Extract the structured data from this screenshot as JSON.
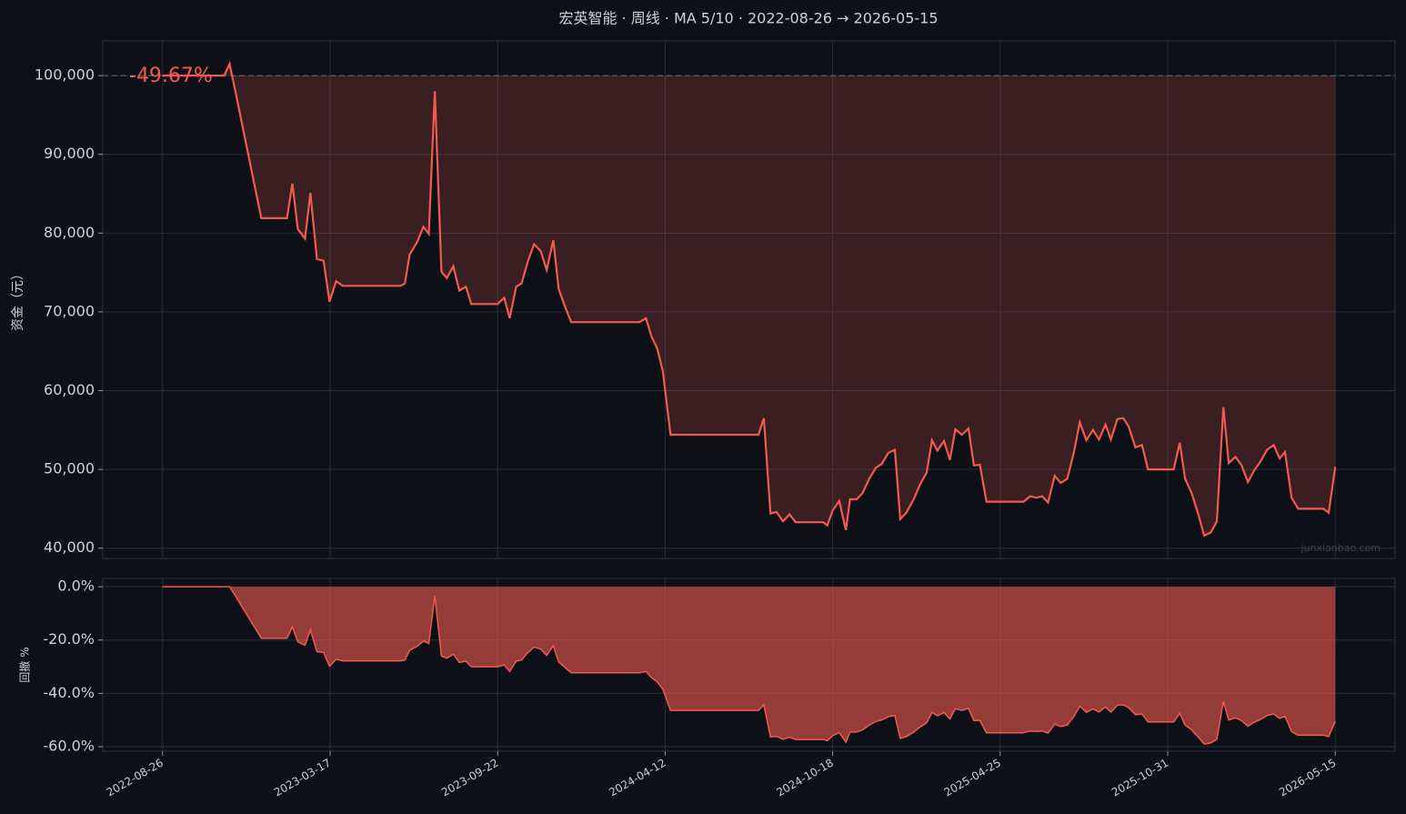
{
  "chart_data": [
    {
      "type": "line",
      "title": "宏英智能 · 周线 · MA 5/10 · 2022-08-26 → 2026-05-15",
      "y_label": "资金（元）",
      "annotation": "-49.67%",
      "watermark": "junxianbao.com",
      "baseline": 100000,
      "xlim": [
        -10,
        206
      ],
      "ylim": [
        38700,
        104400
      ],
      "yticks": [
        {
          "value": 40000,
          "label": "40,000"
        },
        {
          "value": 50000,
          "label": "50,000"
        },
        {
          "value": 60000,
          "label": "60,000"
        },
        {
          "value": 70000,
          "label": "70,000"
        },
        {
          "value": 80000,
          "label": "80,000"
        },
        {
          "value": 90000,
          "label": "90,000"
        },
        {
          "value": 100000,
          "label": "100,000"
        }
      ],
      "grid": true,
      "x": [
        0,
        10.3,
        11.2,
        12.4,
        16.5,
        20.8,
        21.7,
        22.6,
        23.8,
        24.7,
        25.8,
        26.9,
        27.9,
        29.0,
        30.1,
        39.8,
        40.5,
        41.3,
        42.5,
        43.6,
        44.5,
        45.5,
        46.6,
        47.5,
        48.6,
        49.6,
        50.7,
        51.6,
        56.0,
        57.1,
        58.0,
        59.1,
        60.0,
        61.0,
        62.1,
        63.2,
        64.2,
        65.3,
        66.2,
        67.3,
        68.3,
        79.7,
        80.8,
        81.7,
        82.7,
        83.6,
        84.9,
        99.6,
        100.5,
        101.6,
        102.6,
        103.7,
        104.8,
        105.8,
        110.4,
        111.1,
        112.0,
        113.1,
        114.2,
        114.9,
        116.0,
        117.0,
        118.1,
        119.2,
        120.2,
        121.3,
        122.4,
        123.3,
        124.3,
        125.6,
        126.6,
        127.7,
        128.6,
        129.5,
        130.6,
        131.6,
        132.5,
        133.6,
        134.7,
        135.6,
        136.6,
        137.7,
        143.9,
        145.0,
        146.0,
        147.0,
        148.0,
        149.1,
        150.1,
        151.2,
        152.3,
        153.3,
        154.4,
        155.5,
        156.5,
        157.6,
        158.5,
        159.6,
        160.6,
        161.5,
        162.6,
        163.7,
        164.7,
        169.0,
        170.0,
        170.9,
        172.0,
        173.1,
        174.1,
        175.2,
        176.2,
        177.3,
        178.2,
        179.3,
        180.3,
        181.4,
        182.4,
        183.5,
        184.6,
        185.7,
        186.7,
        187.6,
        188.7,
        189.8,
        194.0,
        194.9,
        196.0
      ],
      "series": [
        {
          "name": "资金",
          "color": "#f25a4f",
          "values": [
            100000,
            100000,
            101500,
            97100,
            81900,
            81900,
            86300,
            80500,
            79300,
            85100,
            76700,
            76500,
            71300,
            73900,
            73300,
            73300,
            73600,
            77300,
            78800,
            80800,
            79900,
            98000,
            75100,
            74300,
            75800,
            72700,
            73200,
            71000,
            71000,
            71800,
            69200,
            73200,
            73600,
            76300,
            78600,
            77700,
            75300,
            79100,
            72900,
            70600,
            68700,
            68700,
            69200,
            66900,
            65300,
            62500,
            54400,
            54400,
            56500,
            44400,
            44600,
            43400,
            44300,
            43300,
            43300,
            42900,
            44800,
            46000,
            42300,
            46200,
            46200,
            47000,
            48800,
            50200,
            50700,
            52100,
            52500,
            43700,
            44500,
            46300,
            48100,
            49600,
            53700,
            52400,
            53600,
            51200,
            55100,
            54400,
            55200,
            50500,
            50600,
            45900,
            45900,
            46600,
            46400,
            46600,
            45800,
            49200,
            48300,
            48800,
            52100,
            56000,
            53700,
            55000,
            53800,
            55700,
            53800,
            56400,
            56500,
            55400,
            52800,
            53100,
            50000,
            50000,
            53400,
            48800,
            47000,
            44300,
            41600,
            42000,
            43400,
            57900,
            50800,
            51600,
            50600,
            48400,
            49800,
            51000,
            52500,
            53100,
            51400,
            52200,
            46400,
            45000,
            45000,
            44500,
            50330
          ]
        }
      ]
    },
    {
      "type": "area",
      "y_label": "回撤 %",
      "ylim": [
        -61.7,
        3.1
      ],
      "yticks": [
        {
          "value": -60,
          "label": "-60.0%"
        },
        {
          "value": -40,
          "label": "-40.0%"
        },
        {
          "value": -20,
          "label": "-20.0%"
        },
        {
          "value": 0,
          "label": "0.0%"
        }
      ],
      "xticks": [
        {
          "value": 0,
          "label": "2022-08-26"
        },
        {
          "value": 28,
          "label": "2023-03-17"
        },
        {
          "value": 56,
          "label": "2023-09-22"
        },
        {
          "value": 84,
          "label": "2024-04-12"
        },
        {
          "value": 112,
          "label": "2024-10-18"
        },
        {
          "value": 140,
          "label": "2025-04-25"
        },
        {
          "value": 168,
          "label": "2025-10-31"
        },
        {
          "value": 196,
          "label": "2026-05-15"
        }
      ],
      "grid": true,
      "series": [
        {
          "name": "回撤",
          "color": "#f25a4f",
          "values": [
            0,
            0,
            0,
            -4.3,
            -19.3,
            -19.3,
            -15.0,
            -20.7,
            -21.9,
            -16.2,
            -24.4,
            -24.6,
            -29.8,
            -27.2,
            -27.8,
            -27.8,
            -27.5,
            -23.8,
            -22.4,
            -20.4,
            -21.3,
            -3.4,
            -26.0,
            -26.8,
            -25.3,
            -28.4,
            -27.9,
            -30.0,
            -30.0,
            -29.3,
            -31.8,
            -27.9,
            -27.5,
            -24.8,
            -22.6,
            -23.4,
            -25.8,
            -22.1,
            -28.2,
            -30.4,
            -32.3,
            -32.3,
            -31.8,
            -34.1,
            -35.7,
            -38.4,
            -46.4,
            -46.4,
            -44.3,
            -56.3,
            -56.1,
            -57.2,
            -56.4,
            -57.3,
            -57.3,
            -57.7,
            -55.9,
            -54.7,
            -58.3,
            -54.5,
            -54.5,
            -53.7,
            -51.9,
            -50.5,
            -50.0,
            -48.7,
            -48.3,
            -56.9,
            -56.2,
            -54.4,
            -52.6,
            -51.1,
            -47.1,
            -48.4,
            -47.2,
            -49.6,
            -45.7,
            -46.4,
            -45.6,
            -50.2,
            -50.1,
            -54.8,
            -54.8,
            -54.1,
            -54.3,
            -54.1,
            -54.9,
            -51.5,
            -52.4,
            -51.9,
            -48.7,
            -44.8,
            -47.1,
            -45.8,
            -47.0,
            -45.1,
            -47.0,
            -44.4,
            -44.3,
            -45.4,
            -48.0,
            -47.7,
            -50.7,
            -50.7,
            -47.4,
            -51.9,
            -53.7,
            -56.4,
            -59.0,
            -58.6,
            -57.2,
            -43.0,
            -50.0,
            -49.2,
            -50.1,
            -52.3,
            -50.9,
            -49.8,
            -48.3,
            -47.7,
            -49.4,
            -48.6,
            -54.3,
            -55.7,
            -55.7,
            -56.2,
            -50.4
          ]
        }
      ]
    }
  ]
}
